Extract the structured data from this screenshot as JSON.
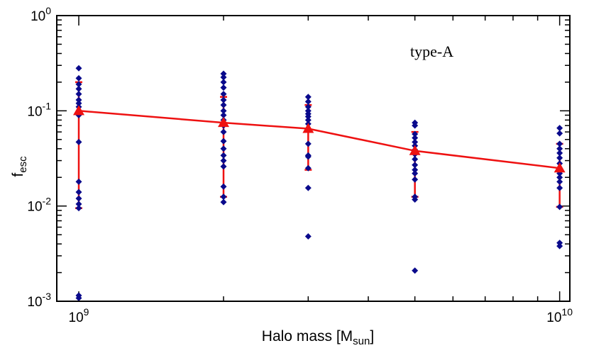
{
  "chart_data": {
    "type": "scatter",
    "title": "",
    "annotation": "type-A",
    "xlabel": "Halo mass [M",
    "xlabel_sub": "sun",
    "xlabel_end": "]",
    "ylabel": "f",
    "ylabel_sub": "esc",
    "xscale": "log",
    "yscale": "log",
    "xlim": [
      900000000,
      10500000000
    ],
    "ylim": [
      0.001,
      1
    ],
    "x_ticks": [
      {
        "value": 1000000000,
        "base": "10",
        "exp": "9"
      },
      {
        "value": 10000000000,
        "base": "10",
        "exp": "10"
      }
    ],
    "y_ticks": [
      {
        "value": 0.001,
        "base": "10",
        "exp": "-3"
      },
      {
        "value": 0.01,
        "base": "10",
        "exp": "-2"
      },
      {
        "value": 0.1,
        "base": "10",
        "exp": "-1"
      },
      {
        "value": 1,
        "base": "10",
        "exp": "0"
      }
    ],
    "colors": {
      "points": "#0a0a8c",
      "median": "#ee1111"
    },
    "series": [
      {
        "kind": "points",
        "groups": [
          {
            "x": 1000000000,
            "y": [
              0.28,
              0.22,
              0.19,
              0.17,
              0.15,
              0.13,
              0.12,
              0.11,
              0.1,
              0.09,
              0.047,
              0.018,
              0.014,
              0.012,
              0.0105,
              0.0095,
              0.00115,
              0.00108
            ]
          },
          {
            "x": 2000000000,
            "y": [
              0.245,
              0.225,
              0.2,
              0.175,
              0.15,
              0.13,
              0.115,
              0.1,
              0.09,
              0.08,
              0.07,
              0.06,
              0.048,
              0.04,
              0.034,
              0.03,
              0.026,
              0.016,
              0.0125,
              0.011
            ]
          },
          {
            "x": 3000000000,
            "y": [
              0.14,
              0.125,
              0.11,
              0.1,
              0.093,
              0.087,
              0.08,
              0.073,
              0.045,
              0.034,
              0.033,
              0.025,
              0.0155,
              0.0048
            ]
          },
          {
            "x": 5000000000,
            "y": [
              0.075,
              0.07,
              0.057,
              0.052,
              0.047,
              0.043,
              0.039,
              0.035,
              0.031,
              0.027,
              0.024,
              0.022,
              0.019,
              0.0125,
              0.0117,
              0.0021
            ]
          },
          {
            "x": 10000000000,
            "y": [
              0.066,
              0.058,
              0.045,
              0.04,
              0.036,
              0.032,
              0.028,
              0.024,
              0.022,
              0.02,
              0.018,
              0.0155,
              0.0098,
              0.0041,
              0.0038
            ]
          }
        ]
      },
      {
        "kind": "median",
        "x": [
          1000000000,
          2000000000,
          3000000000,
          5000000000,
          10000000000
        ],
        "y": [
          0.1,
          0.075,
          0.065,
          0.038,
          0.025
        ],
        "err_low": [
          0.0095,
          0.0125,
          0.024,
          0.0125,
          0.0098
        ],
        "err_high": [
          0.2,
          0.14,
          0.115,
          0.06,
          0.045
        ]
      }
    ]
  }
}
